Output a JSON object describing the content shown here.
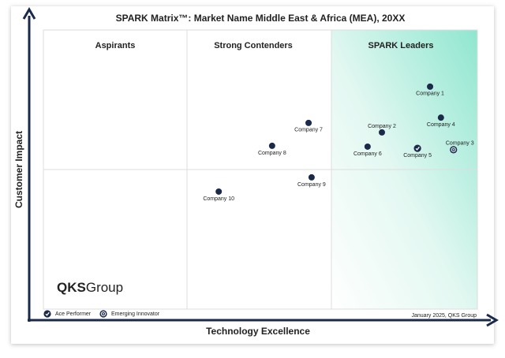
{
  "chart_data": {
    "type": "scatter",
    "title": "SPARK Matrix™: Market Name Middle East & Africa (MEA), 20XX",
    "x_label": "Technology Excellence",
    "y_label": "Customer Impact",
    "quadrants": [
      "Aspirants",
      "Strong Contenders",
      "SPARK Leaders"
    ],
    "xlim": [
      0,
      100
    ],
    "ylim": [
      0,
      100
    ],
    "points": [
      {
        "label": "Company 1",
        "x": 89.1,
        "y": 79.7,
        "marker": "default"
      },
      {
        "label": "Company 2",
        "x": 78.0,
        "y": 63.3,
        "marker": "default"
      },
      {
        "label": "Company 3",
        "x": 94.5,
        "y": 57.1,
        "marker": "emerging"
      },
      {
        "label": "Company 4",
        "x": 91.6,
        "y": 68.6,
        "marker": "default"
      },
      {
        "label": "Company 5",
        "x": 86.2,
        "y": 57.6,
        "marker": "ace"
      },
      {
        "label": "Company 6",
        "x": 74.7,
        "y": 58.2,
        "marker": "default"
      },
      {
        "label": "Company 7",
        "x": 61.1,
        "y": 66.7,
        "marker": "default"
      },
      {
        "label": "Company 8",
        "x": 52.7,
        "y": 58.5,
        "marker": "default"
      },
      {
        "label": "Company 9",
        "x": 61.8,
        "y": 47.2,
        "marker": "default"
      },
      {
        "label": "Company 10",
        "x": 40.4,
        "y": 42.1,
        "marker": "default"
      }
    ],
    "label_side": [
      "below",
      "above",
      "above",
      "below",
      "below",
      "below",
      "below",
      "below",
      "below",
      "below"
    ],
    "marker_color": "#1b2a4a",
    "legend": [
      {
        "label": "Ace Performer",
        "marker": "ace"
      },
      {
        "label": "Emerging Innovator",
        "marker": "emerging"
      }
    ],
    "footnote": "January 2025, QKS Group",
    "logo": [
      "QKS",
      "Group"
    ]
  }
}
